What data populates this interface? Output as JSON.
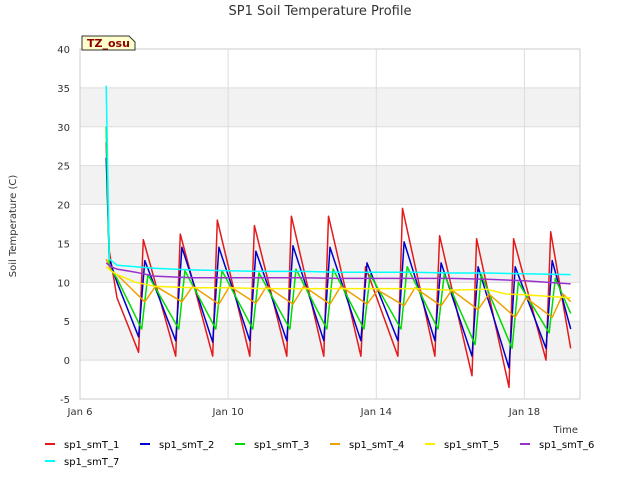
{
  "chart_data": {
    "type": "line",
    "title": "SP1 Soil Temperature Profile",
    "xlabel": "Time",
    "ylabel": "Soil Temperature (C)",
    "tag": "TZ_osu",
    "ylim": [
      -5,
      40
    ],
    "yticks": [
      -5,
      0,
      5,
      10,
      15,
      20,
      25,
      30,
      35,
      40
    ],
    "xlim": [
      "2018-01-06",
      "2018-01-19T12:00"
    ],
    "xticks": [
      {
        "date": "2018-01-06",
        "label": "Jan 6"
      },
      {
        "date": "2018-01-10",
        "label": "Jan 10"
      },
      {
        "date": "2018-01-14",
        "label": "Jan 14"
      },
      {
        "date": "2018-01-18",
        "label": "Jan 18"
      }
    ],
    "grid": true,
    "legend_position": "bottom",
    "series": [
      {
        "name": "sp1_smT_1",
        "color": "#e31a1c",
        "x": [
          "2018-01-06T17:00",
          "2018-01-06T19:00",
          "2018-01-07T00:00",
          "2018-01-07T08:00",
          "2018-01-07T14:00",
          "2018-01-07T17:00",
          "2018-01-08T14:00",
          "2018-01-08T17:00",
          "2018-01-09T14:00",
          "2018-01-09T17:00",
          "2018-01-10T14:00",
          "2018-01-10T17:00",
          "2018-01-11T14:00",
          "2018-01-11T17:00",
          "2018-01-12T14:00",
          "2018-01-12T17:00",
          "2018-01-13T14:00",
          "2018-01-13T17:00",
          "2018-01-14T14:00",
          "2018-01-14T17:00",
          "2018-01-15T14:00",
          "2018-01-15T17:00",
          "2018-01-16T14:00",
          "2018-01-16T17:00",
          "2018-01-17T14:00",
          "2018-01-17T17:00",
          "2018-01-18T14:00",
          "2018-01-18T17:00",
          "2018-01-19T06:00"
        ],
        "values": [
          28,
          14,
          8,
          4,
          1,
          15.5,
          0.5,
          16.2,
          0.5,
          18,
          0.5,
          17.3,
          0.5,
          18.5,
          0.5,
          18.5,
          0.5,
          12,
          0.5,
          19.5,
          0.5,
          16,
          -2,
          15.6,
          -3.5,
          15.6,
          0,
          16.5,
          1.5
        ]
      },
      {
        "name": "sp1_smT_2",
        "color": "#0000cc",
        "x": [
          "2018-01-06T17:00",
          "2018-01-06T19:00",
          "2018-01-07T00:00",
          "2018-01-07T14:00",
          "2018-01-07T18:00",
          "2018-01-08T14:00",
          "2018-01-08T18:00",
          "2018-01-09T14:00",
          "2018-01-09T18:00",
          "2018-01-10T14:00",
          "2018-01-10T18:00",
          "2018-01-11T14:00",
          "2018-01-11T18:00",
          "2018-01-12T14:00",
          "2018-01-12T18:00",
          "2018-01-13T14:00",
          "2018-01-13T18:00",
          "2018-01-14T14:00",
          "2018-01-14T18:00",
          "2018-01-15T14:00",
          "2018-01-15T18:00",
          "2018-01-16T14:00",
          "2018-01-16T18:00",
          "2018-01-17T14:00",
          "2018-01-17T18:00",
          "2018-01-18T14:00",
          "2018-01-18T18:00",
          "2018-01-19T06:00"
        ],
        "values": [
          26,
          13,
          10,
          3,
          12.8,
          2.5,
          14.5,
          2.3,
          14.5,
          2.5,
          14,
          2.5,
          14.7,
          2.5,
          14.5,
          2.5,
          12.5,
          2.5,
          15.2,
          2.5,
          12.5,
          0.5,
          12,
          -1,
          12,
          1.5,
          12.8,
          4
        ]
      },
      {
        "name": "sp1_smT_3",
        "color": "#00dd00",
        "x": [
          "2018-01-06T17:00",
          "2018-01-06T19:00",
          "2018-01-07T00:00",
          "2018-01-07T16:00",
          "2018-01-07T20:00",
          "2018-01-08T16:00",
          "2018-01-08T20:00",
          "2018-01-09T16:00",
          "2018-01-09T20:00",
          "2018-01-10T16:00",
          "2018-01-10T20:00",
          "2018-01-11T16:00",
          "2018-01-11T20:00",
          "2018-01-12T16:00",
          "2018-01-12T20:00",
          "2018-01-13T16:00",
          "2018-01-13T20:00",
          "2018-01-14T16:00",
          "2018-01-14T20:00",
          "2018-01-15T16:00",
          "2018-01-15T20:00",
          "2018-01-16T16:00",
          "2018-01-16T20:00",
          "2018-01-17T16:00",
          "2018-01-17T20:00",
          "2018-01-18T16:00",
          "2018-01-18T20:00",
          "2018-01-19T06:00"
        ],
        "values": [
          30,
          12,
          10.5,
          4,
          11,
          4,
          11.5,
          4,
          11.5,
          4,
          11.2,
          4,
          11.7,
          4,
          11.7,
          4,
          11,
          4,
          12,
          4,
          11,
          2,
          11,
          1.5,
          10,
          3.5,
          10.5,
          6
        ]
      },
      {
        "name": "sp1_smT_4",
        "color": "#f0a000",
        "x": [
          "2018-01-06T17:00",
          "2018-01-06T20:00",
          "2018-01-07T00:00",
          "2018-01-07T18:00",
          "2018-01-08T01:00",
          "2018-01-08T18:00",
          "2018-01-09T01:00",
          "2018-01-09T18:00",
          "2018-01-10T01:00",
          "2018-01-10T18:00",
          "2018-01-11T01:00",
          "2018-01-11T18:00",
          "2018-01-12T01:00",
          "2018-01-12T18:00",
          "2018-01-13T01:00",
          "2018-01-13T18:00",
          "2018-01-14T01:00",
          "2018-01-14T18:00",
          "2018-01-15T01:00",
          "2018-01-15T18:00",
          "2018-01-16T01:00",
          "2018-01-16T18:00",
          "2018-01-17T01:00",
          "2018-01-17T18:00",
          "2018-01-18T01:00",
          "2018-01-18T18:00",
          "2018-01-19T01:00",
          "2018-01-19T06:00"
        ],
        "values": [
          13,
          11.5,
          11,
          7.5,
          9.5,
          7.5,
          9.5,
          7.2,
          9.5,
          7.3,
          9.5,
          7.2,
          9.5,
          7.2,
          9.5,
          7.2,
          9,
          7,
          9.3,
          7,
          9,
          6.5,
          8.5,
          5.5,
          8,
          5.5,
          8.5,
          7.5
        ]
      },
      {
        "name": "sp1_smT_5",
        "color": "#ffee00",
        "x": [
          "2018-01-06T17:00",
          "2018-01-06T20:00",
          "2018-01-07T00:00",
          "2018-01-07T12:00",
          "2018-01-08T00:00",
          "2018-01-09T00:00",
          "2018-01-10T00:00",
          "2018-01-11T00:00",
          "2018-01-12T00:00",
          "2018-01-13T00:00",
          "2018-01-14T00:00",
          "2018-01-15T00:00",
          "2018-01-16T00:00",
          "2018-01-17T00:00",
          "2018-01-17T12:00",
          "2018-01-18T00:00",
          "2018-01-19T06:00"
        ],
        "values": [
          12,
          11.5,
          11,
          10,
          9.5,
          9.3,
          9.3,
          9.2,
          9.2,
          9.2,
          9.2,
          9.2,
          9,
          9.1,
          8.5,
          8.4,
          8
        ]
      },
      {
        "name": "sp1_smT_6",
        "color": "#9932cc",
        "x": [
          "2018-01-06T17:00",
          "2018-01-06T20:00",
          "2018-01-07T00:00",
          "2018-01-07T12:00",
          "2018-01-08T00:00",
          "2018-01-09T00:00",
          "2018-01-10T00:00",
          "2018-01-11T00:00",
          "2018-01-12T00:00",
          "2018-01-13T00:00",
          "2018-01-14T00:00",
          "2018-01-15T00:00",
          "2018-01-16T00:00",
          "2018-01-17T00:00",
          "2018-01-18T00:00",
          "2018-01-19T06:00"
        ],
        "values": [
          12.5,
          12,
          11.7,
          11.3,
          10.8,
          10.6,
          10.6,
          10.6,
          10.6,
          10.5,
          10.5,
          10.5,
          10.5,
          10.4,
          10.2,
          9.8
        ]
      },
      {
        "name": "sp1_smT_7",
        "color": "#00ffff",
        "x": [
          "2018-01-06T17:00",
          "2018-01-06T19:00",
          "2018-01-07T00:00",
          "2018-01-07T12:00",
          "2018-01-08T00:00",
          "2018-01-09T00:00",
          "2018-01-10T00:00",
          "2018-01-11T00:00",
          "2018-01-12T00:00",
          "2018-01-13T00:00",
          "2018-01-14T00:00",
          "2018-01-15T00:00",
          "2018-01-16T00:00",
          "2018-01-17T00:00",
          "2018-01-18T00:00",
          "2018-01-19T06:00"
        ],
        "values": [
          35.3,
          13,
          12.2,
          12,
          11.8,
          11.6,
          11.5,
          11.4,
          11.4,
          11.3,
          11.3,
          11.3,
          11.2,
          11.2,
          11.1,
          11
        ]
      }
    ]
  }
}
